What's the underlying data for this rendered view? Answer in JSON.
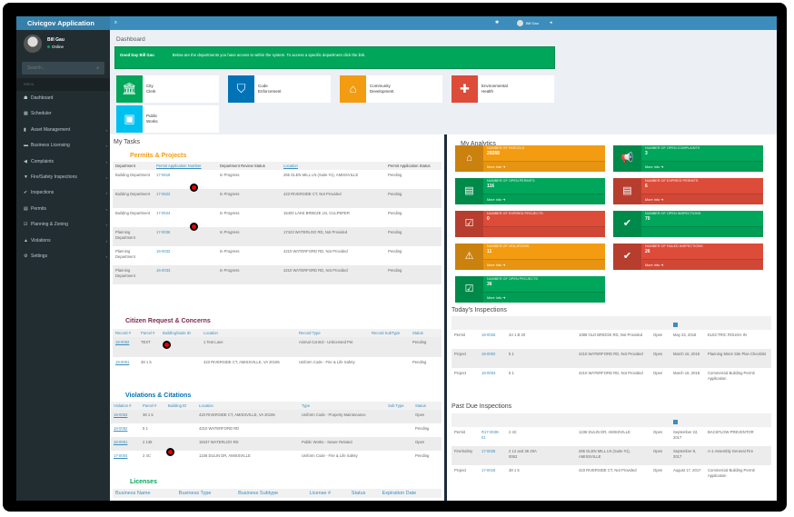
{
  "app": {
    "title": "Civicgov Application"
  },
  "user": {
    "name": "Bill Gau",
    "status": "Online"
  },
  "sidebar": {
    "search_placeholder": "Search...",
    "menu_header": "Menu",
    "items": [
      {
        "label": "Dashboard",
        "icon": "dashboard-icon",
        "glyph": "☗",
        "chevron": false
      },
      {
        "label": "Scheduler",
        "icon": "calendar-icon",
        "glyph": "▦",
        "chevron": false
      },
      {
        "label": "Asset Management",
        "icon": "book-icon",
        "glyph": "▮",
        "chevron": true
      },
      {
        "label": "Business Licensing",
        "icon": "briefcase-icon",
        "glyph": "▬",
        "chevron": true
      },
      {
        "label": "Complaints",
        "icon": "bullhorn-icon",
        "glyph": "◀",
        "chevron": true
      },
      {
        "label": "Fire/Safety Inspections",
        "icon": "fire-extinguisher-icon",
        "glyph": "▼",
        "chevron": true
      },
      {
        "label": "Inspections",
        "icon": "check-icon",
        "glyph": "✔",
        "chevron": true
      },
      {
        "label": "Permits",
        "icon": "file-icon",
        "glyph": "▤",
        "chevron": true
      },
      {
        "label": "Planning & Zoning",
        "icon": "check-square-icon",
        "glyph": "☑",
        "chevron": true
      },
      {
        "label": "Violations",
        "icon": "warning-icon",
        "glyph": "▲",
        "chevron": true
      },
      {
        "label": "Settings",
        "icon": "gears-icon",
        "glyph": "⚙",
        "chevron": true
      }
    ]
  },
  "topbar": {
    "user": "Bill Gau"
  },
  "dashboard": {
    "title": "Dashboard",
    "greeting": "Good Day Bill Gau",
    "message": "Below are the departments you have access to within the system.  To access a specific department click the link.",
    "departments": [
      {
        "line1": "City",
        "line2": "Clerk",
        "color": "#00a65a",
        "icon": "bank-icon",
        "glyph": "🏛"
      },
      {
        "line1": "Code",
        "line2": "Enforcement",
        "color": "#0073b7",
        "icon": "shield-icon",
        "glyph": "⛉"
      },
      {
        "line1": "Community",
        "line2": "Development",
        "color": "#f39c12",
        "icon": "home-icon",
        "glyph": "⌂"
      },
      {
        "line1": "Environmental",
        "line2": "Health",
        "color": "#dd4b39",
        "icon": "plus-circle-icon",
        "glyph": "✚"
      },
      {
        "line1": "Public",
        "line2": "Works",
        "color": "#00c0ef",
        "icon": "briefcase-icon",
        "glyph": "▣"
      }
    ]
  },
  "tasks": {
    "title": "My Tasks",
    "permits": {
      "title": "Permits & Projects",
      "color": "#f39c12",
      "headers": [
        "Department",
        "Permit Application Number",
        "Department Review Status",
        "Location",
        "Permit Application Status"
      ],
      "rows": [
        [
          "Building Department",
          "17-0619",
          "In Progress",
          "265 GLEN MILL LN (Suite #1), AMISSVILLE",
          "Pending"
        ],
        [
          "Building Department",
          "17-0622",
          "In Progress",
          "423 RIVERSIDE CT, Not Provided",
          "Pending"
        ],
        [
          "Building Department",
          "17-0624",
          "In Progress",
          "15400 LAKE BREEZE LN, CULPEPER",
          "Pending"
        ],
        [
          "Planning Department",
          "17-0036",
          "In Progress",
          "17423 WATERLOO RD, Not Provided",
          "Pending"
        ],
        [
          "Planning Department",
          "16-0032",
          "In Progress",
          "4210 WATERFORD RD, Not Provided",
          "Pending"
        ],
        [
          "Planning Department",
          "16-0033",
          "In Progress",
          "4210 WATERFORD RD, Not Provided",
          "Pending"
        ]
      ]
    },
    "citizen": {
      "title": "Citizen Request & Concerns",
      "color": "#7b2a4a",
      "headers": [
        "Record #",
        "Parcel #",
        "Building/Suite ID",
        "Location",
        "Record Type",
        "Record SubType",
        "Status"
      ],
      "rows": [
        [
          "18-0062",
          "TEST",
          "",
          "1 Test Lane",
          "Animal Control - Unlicensed Pet",
          "",
          "Pending"
        ],
        [
          "18-0061",
          "38 1 5",
          "",
          "423 RIVERSIDE CT, AMISSVILLE, VA 20106",
          "Uniform Code - Fire & Life Safety",
          "",
          "Pending"
        ]
      ]
    },
    "violations": {
      "title": "Violations & Citations",
      "color": "#0073b7",
      "headers": [
        "Violation #",
        "Parcel #",
        "Building ID",
        "Location",
        "Type",
        "Sub Type",
        "Status"
      ],
      "rows": [
        [
          "18-0063",
          "38 1 5",
          "",
          "423 RIVERSIDE CT, AMISSVILLE, VA 20106",
          "Uniform Code - Property Maintenance",
          "",
          "Open"
        ],
        [
          "18-0062",
          "5 1",
          "",
          "4210 WATERFORD RD",
          "",
          "",
          "Pending"
        ],
        [
          "18-0061",
          "2 136",
          "",
          "18437 WATERLOO RD",
          "Public Works - Sewer Related",
          "",
          "Open"
        ],
        [
          "17-0004",
          "2 4C",
          "",
          "1236 DULIN DR, AMISSVILLE",
          "Uniform Code - Fire & Life Safety",
          "",
          "Pending"
        ]
      ]
    },
    "licenses": {
      "title": "Licenses",
      "color": "#00a65a",
      "headers": [
        "Business Name",
        "Business Type",
        "Business Subtype",
        "License #",
        "Status",
        "Expiration Date"
      ]
    }
  },
  "analytics": {
    "title": "My Analytics",
    "more_info": "More Info",
    "boxes": [
      {
        "label": "NUMBER OF PARCELS",
        "value": "29268",
        "color": "#f39c12",
        "icon": "home-icon",
        "glyph": "⌂",
        "more": true
      },
      {
        "label": "NUMBER OF OPEN COMPLAINTS",
        "value": "3",
        "color": "#00a65a",
        "icon": "bullhorn-icon",
        "glyph": "📢",
        "more": true
      },
      {
        "label": "NUMBER OF OPEN PERMITS",
        "value": "116",
        "color": "#00a65a",
        "icon": "file-icon",
        "glyph": "▤",
        "more": true
      },
      {
        "label": "NUMBER OF EXPIRED PERMITS",
        "value": "6",
        "color": "#dd4b39",
        "icon": "file-icon",
        "glyph": "▤",
        "more": true
      },
      {
        "label": "NUMBER OF EXPIRED PROJECTS",
        "value": "0",
        "color": "#dd4b39",
        "icon": "check-square-icon",
        "glyph": "☑",
        "more": false
      },
      {
        "label": "NUMBER OF OPEN INSPECTIONS",
        "value": "70",
        "color": "#00a65a",
        "icon": "check-icon",
        "glyph": "✔",
        "more": false
      },
      {
        "label": "NUMBER OF VIOLATIONS",
        "value": "11",
        "color": "#f39c12",
        "icon": "warning-icon",
        "glyph": "⚠",
        "more": true
      },
      {
        "label": "NUMBER OF FAILED INSPECTIONS",
        "value": "26",
        "color": "#dd4b39",
        "icon": "check-icon",
        "glyph": "✔",
        "more": true
      },
      {
        "label": "NUMBER OF OPEN PROJECTS",
        "value": "36",
        "color": "#00a65a",
        "icon": "check-square-icon",
        "glyph": "☑",
        "more": true
      }
    ]
  },
  "inspections": {
    "headers": [
      "Category",
      "Inspection #",
      "Parcel #",
      "Contractor",
      "Location",
      "Status",
      "Date",
      "Type"
    ],
    "today": {
      "title": "Today's Inspections",
      "rows": [
        [
          "Permit",
          "18-0026",
          "3A 1 B 20",
          "",
          "1088 OLD BRIDGE RD, Not Provided",
          "Open",
          "May 23, 2018",
          "ELECTRIC ROUGH IN"
        ],
        [
          "Project",
          "18-0002",
          "5 1",
          "",
          "4210 WATERFORD RD, Not Provided",
          "Open",
          "March 16, 2018",
          "Planning Minor Site Plan Checklist"
        ],
        [
          "Project",
          "18-0003",
          "5 1",
          "",
          "4210 WATERFORD RD, Not Provided",
          "Open",
          "March 16, 2018",
          "Commercial Building Permit Application"
        ]
      ]
    },
    "past_due": {
      "title": "Past Due Inspections",
      "rows": [
        [
          "Permit",
          "R17-0038-01",
          "2 4C",
          "",
          "1236 DULIN DR, AMISSVILLE",
          "Open",
          "September 22, 2017",
          "BACKFLOW PREVENTOR"
        ],
        [
          "Fire/Safety",
          "17-0026",
          "2 12 and 36 29A 0062",
          "",
          "265 GLEN MILL LN (Suite #1), AMISSVILLE",
          "Open",
          "September 8, 2017",
          "A-1 Assembly General Fire"
        ],
        [
          "Project",
          "17-0016",
          "38 1 5",
          "",
          "423 RIVERSIDE CT, Not Provided",
          "Open",
          "August 17, 2017",
          "Commercial Building Permit Application"
        ]
      ]
    }
  }
}
